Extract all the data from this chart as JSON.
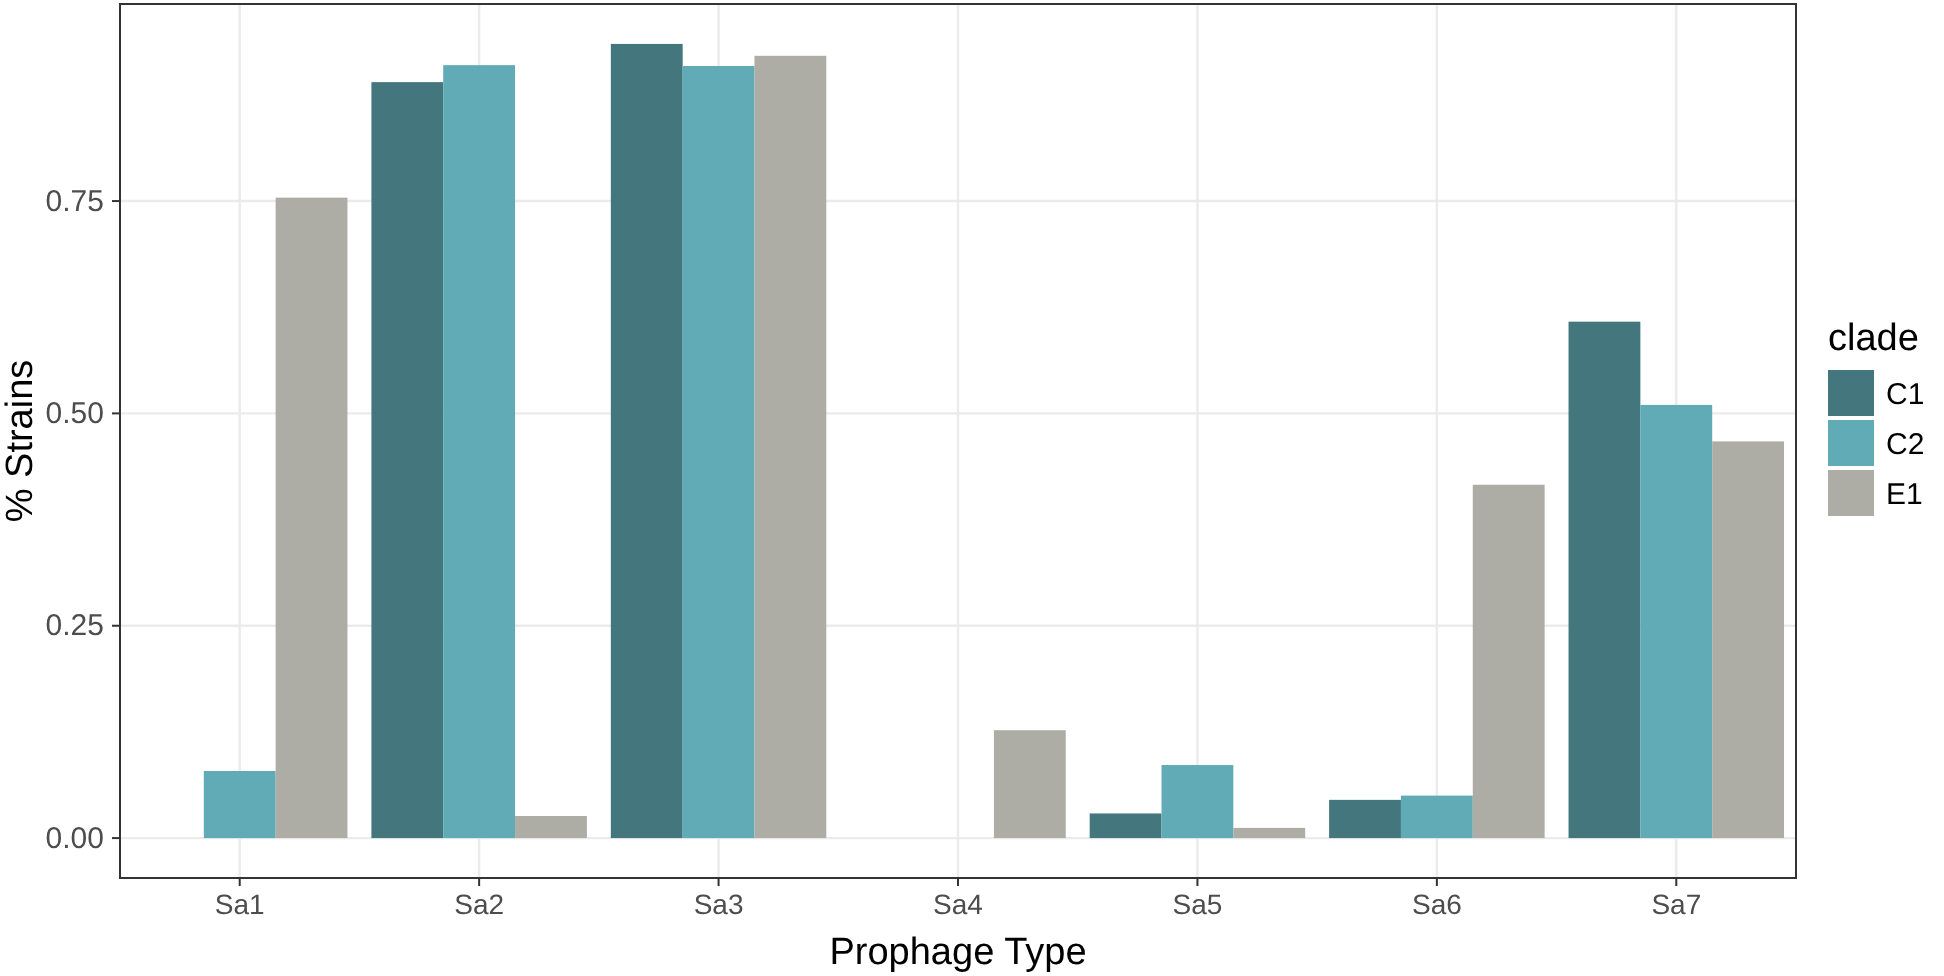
{
  "chart_data": {
    "type": "bar",
    "xlabel": "Prophage Type",
    "ylabel": "% Strains",
    "legend_title": "clade",
    "categories": [
      "Sa1",
      "Sa2",
      "Sa3",
      "Sa4",
      "Sa5",
      "Sa6",
      "Sa7"
    ],
    "series": [
      {
        "name": "C1",
        "color": "#44777d",
        "values": [
          0,
          0.89,
          0.935,
          0,
          0.029,
          0.045,
          0.608
        ]
      },
      {
        "name": "C2",
        "color": "#60abb5",
        "values": [
          0.079,
          0.91,
          0.909,
          0,
          0.086,
          0.05,
          0.51
        ]
      },
      {
        "name": "E1",
        "color": "#adada5",
        "values": [
          0.754,
          0.026,
          0.921,
          0.127,
          0.012,
          0.416,
          0.467
        ]
      }
    ],
    "ylim": [
      -0.047,
      0.982
    ],
    "yticks": [
      {
        "value": 0,
        "label": "0.00"
      },
      {
        "value": 0.25,
        "label": "0.25"
      },
      {
        "value": 0.5,
        "label": "0.50"
      },
      {
        "value": 0.75,
        "label": "0.75"
      }
    ],
    "grid": true,
    "legend": "right"
  }
}
